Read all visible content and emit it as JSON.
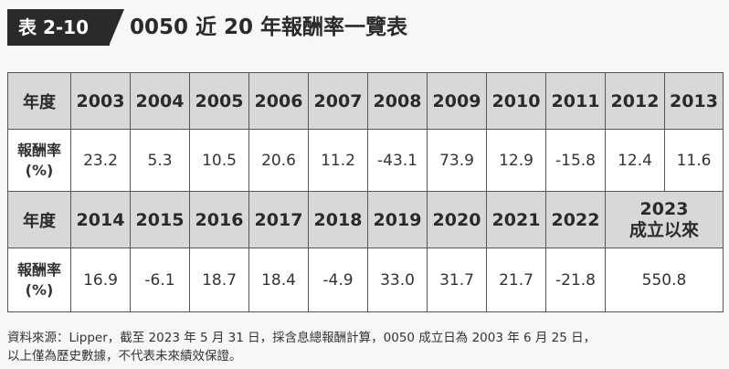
{
  "header": {
    "label": "表 2-10",
    "title": "0050 近 20 年報酬率一覽表"
  },
  "table": {
    "row1": {
      "header": "年度",
      "years": [
        "2003",
        "2004",
        "2005",
        "2006",
        "2007",
        "2008",
        "2009",
        "2010",
        "2011",
        "2012",
        "2013"
      ]
    },
    "row2": {
      "header_line1": "報酬率",
      "header_line2": "(%)",
      "values": [
        "23.2",
        "5.3",
        "10.5",
        "20.6",
        "11.2",
        "-43.1",
        "73.9",
        "12.9",
        "-15.8",
        "12.4",
        "11.6"
      ]
    },
    "row3": {
      "header": "年度",
      "years": [
        "2014",
        "2015",
        "2016",
        "2017",
        "2018",
        "2019",
        "2020",
        "2021",
        "2022"
      ],
      "since_line1": "2023",
      "since_line2": "成立以來"
    },
    "row4": {
      "header_line1": "報酬率",
      "header_line2": "(%)",
      "values": [
        "16.9",
        "-6.1",
        "18.7",
        "18.4",
        "-4.9",
        "33.0",
        "31.7",
        "21.7",
        "-21.8"
      ],
      "since_value": "550.8"
    }
  },
  "footer": {
    "line1": "資料來源：Lipper，截至 2023 年 5 月 31 日，採含息總報酬計算，0050 成立日為 2003 年 6 月 25 日，",
    "line2": "以上僅為歷史數據，不代表未來績效保證。"
  }
}
